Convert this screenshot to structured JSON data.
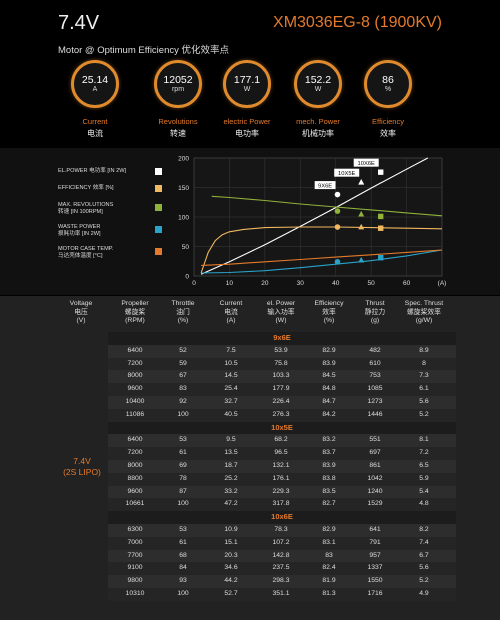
{
  "header": {
    "voltage": "7.4V",
    "model": "XM3036EG-8 (1900KV)",
    "subtitle": "Motor @ Optimum Efficiency  优化效率点"
  },
  "metrics": [
    {
      "value": "25.14",
      "unit": "A",
      "label_en": "Current",
      "label_cn": "电流"
    },
    {
      "value": "12052",
      "unit": "rpm",
      "label_en": "Revolutions",
      "label_cn": "转速"
    },
    {
      "value": "177.1",
      "unit": "W",
      "label_en": "electric Power",
      "label_cn": "电功率"
    },
    {
      "value": "152.2",
      "unit": "W",
      "label_en": "mech. Power",
      "label_cn": "机械功率"
    },
    {
      "value": "86",
      "unit": "%",
      "label_en": "Efficiency",
      "label_cn": "效率"
    }
  ],
  "legend": [
    {
      "label": "EL.POWER 电功率 [IN 2W]",
      "color": "#ffffff"
    },
    {
      "label": "EFFICIENCY 效率 [%]",
      "color": "#f0b860"
    },
    {
      "label": "MAX. REVOLUTIONS\n转速 [IN 100RPM]",
      "color": "#8fb23a"
    },
    {
      "label": "WASTE POWER\n损耗功率 [IN 2W]",
      "color": "#29a3c9"
    },
    {
      "label": "MOTOR CASE TEMP.\n马达壳体温度 [°C]",
      "color": "#e57a2a"
    }
  ],
  "chart_data": {
    "type": "line",
    "xlabel": "(A)",
    "xlim": [
      0,
      70
    ],
    "ylim": [
      0,
      200
    ],
    "xticks": [
      "0",
      "10",
      "20",
      "30",
      "40",
      "50",
      "60",
      "(A)"
    ],
    "yticks": [
      "0",
      "50",
      "100",
      "150",
      "200"
    ],
    "series": [
      {
        "name": "EL.POWER 电功率 [IN 2W]",
        "color": "#ffffff",
        "x": [
          2,
          10,
          20,
          30,
          40,
          50,
          60,
          66
        ],
        "y": [
          3,
          24,
          53,
          84,
          116,
          149,
          181,
          200
        ]
      },
      {
        "name": "EFFICIENCY 效率 [%]",
        "color": "#f0b860",
        "x": [
          2,
          4,
          6,
          8,
          10,
          14,
          20,
          30,
          40,
          50,
          60,
          70
        ],
        "y": [
          5,
          40,
          60,
          70,
          75,
          79,
          82,
          83,
          83,
          82,
          81,
          80
        ]
      },
      {
        "name": "MAX. REVOLUTIONS 转速 [IN 100RPM]",
        "color": "#8fb23a",
        "x": [
          5,
          10,
          20,
          30,
          40,
          50,
          60,
          70
        ],
        "y": [
          135,
          133,
          128,
          122,
          117,
          112,
          107,
          102
        ]
      },
      {
        "name": "WASTE POWER 损耗功率 [IN 2W]",
        "color": "#29a3c9",
        "x": [
          2,
          10,
          20,
          30,
          40,
          50,
          60,
          70
        ],
        "y": [
          5,
          6,
          9,
          14,
          20,
          26,
          34,
          44
        ]
      },
      {
        "name": "MOTOR CASE TEMP. 马达壳体温度 [°C]",
        "color": "#e57a2a",
        "x": [
          2,
          10,
          20,
          30,
          40,
          50,
          60,
          70
        ],
        "y": [
          18,
          20,
          24,
          28,
          32,
          36,
          40,
          44
        ]
      }
    ],
    "prop_markers": [
      {
        "label": "9X6E",
        "x": 40.5,
        "shape": "circle",
        "power": 138,
        "efficiency": 83,
        "revolutions": 110,
        "waste": 24
      },
      {
        "label": "10X5E",
        "x": 47.2,
        "shape": "triangle",
        "power": 159,
        "efficiency": 83,
        "revolutions": 105,
        "waste": 27
      },
      {
        "label": "10X6E",
        "x": 52.7,
        "shape": "square",
        "power": 176,
        "efficiency": 81,
        "revolutions": 101,
        "waste": 31
      }
    ]
  },
  "table": {
    "headers": [
      {
        "en": "Voltage",
        "cn": "电压",
        "unit": "(V)"
      },
      {
        "en": "Propeller",
        "cn": "螺旋桨",
        "unit": "(RPM)"
      },
      {
        "en": "Throttle",
        "cn": "油门",
        "unit": "(%)"
      },
      {
        "en": "Current",
        "cn": "电流",
        "unit": "(A)"
      },
      {
        "en": "el. Power",
        "cn": "输入功率",
        "unit": "(W)"
      },
      {
        "en": "Efficiency",
        "cn": "效率",
        "unit": "(%)"
      },
      {
        "en": "Thrust",
        "cn": "静拉力",
        "unit": "(g)"
      },
      {
        "en": "Spec. Thrust",
        "cn": "螺旋桨效率",
        "unit": "(g/W)"
      }
    ],
    "voltage_label": "7.4V",
    "voltage_sub": "(2S LIPO)",
    "groups": [
      {
        "prop": "9x6E",
        "rows": [
          [
            "6400",
            "52",
            "7.5",
            "53.9",
            "82.9",
            "482",
            "8.9"
          ],
          [
            "7200",
            "59",
            "10.5",
            "75.8",
            "83.9",
            "610",
            "8"
          ],
          [
            "8000",
            "67",
            "14.5",
            "103.3",
            "84.5",
            "753",
            "7.3"
          ],
          [
            "9600",
            "83",
            "25.4",
            "177.9",
            "84.8",
            "1085",
            "6.1"
          ],
          [
            "10400",
            "92",
            "32.7",
            "226.4",
            "84.7",
            "1273",
            "5.6"
          ],
          [
            "11086",
            "100",
            "40.5",
            "276.3",
            "84.2",
            "1446",
            "5.2"
          ]
        ]
      },
      {
        "prop": "10x5E",
        "rows": [
          [
            "6400",
            "53",
            "9.5",
            "68.2",
            "83.2",
            "551",
            "8.1"
          ],
          [
            "7200",
            "61",
            "13.5",
            "96.5",
            "83.7",
            "697",
            "7.2"
          ],
          [
            "8000",
            "69",
            "18.7",
            "132.1",
            "83.9",
            "861",
            "6.5"
          ],
          [
            "8800",
            "78",
            "25.2",
            "176.1",
            "83.8",
            "1042",
            "5.9"
          ],
          [
            "9600",
            "87",
            "33.2",
            "229.3",
            "83.5",
            "1240",
            "5.4"
          ],
          [
            "10661",
            "100",
            "47.2",
            "317.8",
            "82.7",
            "1529",
            "4.8"
          ]
        ]
      },
      {
        "prop": "10x6E",
        "rows": [
          [
            "6300",
            "53",
            "10.9",
            "78.3",
            "82.9",
            "641",
            "8.2"
          ],
          [
            "7000",
            "61",
            "15.1",
            "107.2",
            "83.1",
            "791",
            "7.4"
          ],
          [
            "7700",
            "68",
            "20.3",
            "142.8",
            "83",
            "957",
            "6.7"
          ],
          [
            "9100",
            "84",
            "34.6",
            "237.5",
            "82.4",
            "1337",
            "5.6"
          ],
          [
            "9800",
            "93",
            "44.2",
            "298.3",
            "81.9",
            "1550",
            "5.2"
          ],
          [
            "10310",
            "100",
            "52.7",
            "351.1",
            "81.3",
            "1716",
            "4.9"
          ]
        ]
      }
    ]
  }
}
